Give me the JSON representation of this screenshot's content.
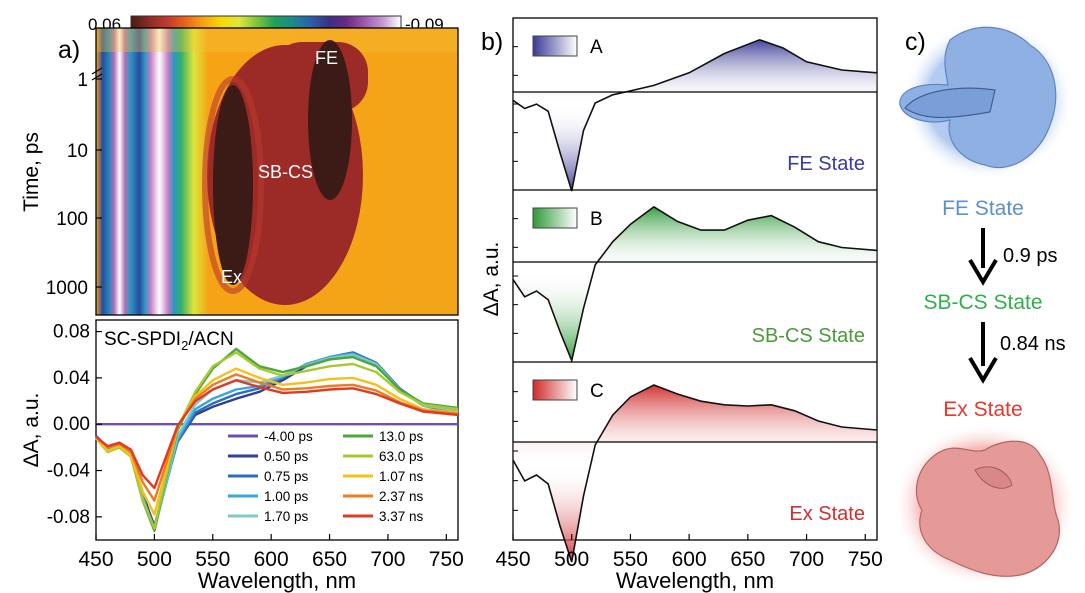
{
  "panel_labels": {
    "a": "a)",
    "b": "b)",
    "c": "c)"
  },
  "colorbar": {
    "max": "0.06",
    "min": "-0.09",
    "colors": [
      "#4a1a12",
      "#8e2a28",
      "#c0392b",
      "#e8641a",
      "#f6a316",
      "#f8d800",
      "#dfe63c",
      "#7cc63a",
      "#1e9f5a",
      "#1b8a8e",
      "#2a5fa8",
      "#3b2f85",
      "#6a2a86",
      "#a05ab0",
      "#c59ad0",
      "#ffffff"
    ]
  },
  "chart_data": [
    {
      "type": "heatmap",
      "panel": "a) top",
      "xlabel": "",
      "ylabel": "Time, ps",
      "yticks": [
        "1",
        "10",
        "100",
        "1000"
      ],
      "annotations": [
        "FE",
        "SB-CS",
        "Ex"
      ],
      "yscale": "log"
    },
    {
      "type": "line",
      "panel": "a) bottom",
      "title": "SC-SPDI2/ACN",
      "xlabel": "Wavelength, nm",
      "ylabel": "ΔA, a.u.",
      "xlim": [
        450,
        760
      ],
      "ylim": [
        -0.1,
        0.09
      ],
      "xticks": [
        "450",
        "500",
        "550",
        "600",
        "650",
        "700",
        "750"
      ],
      "yticks": [
        "0.08",
        "0.04",
        "0.00",
        "-0.04",
        "-0.08"
      ],
      "x": [
        450,
        460,
        470,
        480,
        490,
        500,
        510,
        520,
        535,
        550,
        570,
        590,
        610,
        630,
        650,
        670,
        690,
        710,
        730,
        760
      ],
      "series": [
        {
          "name": "-4.00 ps",
          "color": "#6a4fb8",
          "values": [
            0,
            0,
            0,
            0,
            0,
            0,
            0,
            0,
            0,
            0,
            0,
            0,
            0,
            0,
            0,
            0,
            0,
            0,
            0,
            0
          ]
        },
        {
          "name": "0.50 ps",
          "color": "#2e3f9c",
          "values": [
            -0.01,
            -0.02,
            -0.018,
            -0.024,
            -0.06,
            -0.088,
            -0.05,
            -0.015,
            0.008,
            0.015,
            0.022,
            0.028,
            0.038,
            0.05,
            0.056,
            0.06,
            0.052,
            0.03,
            0.016,
            0.01
          ]
        },
        {
          "name": "0.75 ps",
          "color": "#2a6ebe",
          "values": [
            -0.01,
            -0.021,
            -0.018,
            -0.025,
            -0.062,
            -0.09,
            -0.051,
            -0.015,
            0.01,
            0.018,
            0.026,
            0.031,
            0.04,
            0.052,
            0.058,
            0.062,
            0.053,
            0.031,
            0.017,
            0.011
          ]
        },
        {
          "name": "1.00 ps",
          "color": "#3aa4dc",
          "values": [
            -0.011,
            -0.022,
            -0.019,
            -0.026,
            -0.063,
            -0.091,
            -0.052,
            -0.013,
            0.013,
            0.022,
            0.03,
            0.033,
            0.041,
            0.052,
            0.058,
            0.061,
            0.052,
            0.03,
            0.016,
            0.011
          ]
        },
        {
          "name": "1.70 ps",
          "color": "#7fc9c9",
          "values": [
            -0.012,
            -0.023,
            -0.02,
            -0.027,
            -0.065,
            -0.092,
            -0.05,
            -0.01,
            0.017,
            0.03,
            0.038,
            0.036,
            0.042,
            0.051,
            0.057,
            0.06,
            0.052,
            0.03,
            0.016,
            0.012
          ]
        },
        {
          "name": "13.0 ps",
          "color": "#4aa83a",
          "values": [
            -0.012,
            -0.024,
            -0.02,
            -0.028,
            -0.066,
            -0.092,
            -0.047,
            -0.005,
            0.026,
            0.048,
            0.065,
            0.05,
            0.045,
            0.05,
            0.056,
            0.058,
            0.05,
            0.03,
            0.018,
            0.014
          ]
        },
        {
          "name": "63.0 ps",
          "color": "#a8c832",
          "values": [
            -0.012,
            -0.024,
            -0.02,
            -0.028,
            -0.065,
            -0.09,
            -0.045,
            -0.003,
            0.028,
            0.05,
            0.062,
            0.048,
            0.042,
            0.046,
            0.05,
            0.052,
            0.045,
            0.028,
            0.017,
            0.013
          ]
        },
        {
          "name": "1.07 ns",
          "color": "#f2c21a",
          "values": [
            -0.012,
            -0.023,
            -0.019,
            -0.027,
            -0.058,
            -0.078,
            -0.04,
            -0.002,
            0.024,
            0.038,
            0.048,
            0.04,
            0.034,
            0.036,
            0.039,
            0.04,
            0.034,
            0.022,
            0.013,
            0.01
          ]
        },
        {
          "name": "2.37 ns",
          "color": "#ee7a22",
          "values": [
            -0.011,
            -0.02,
            -0.017,
            -0.024,
            -0.05,
            -0.066,
            -0.034,
            -0.002,
            0.022,
            0.034,
            0.043,
            0.036,
            0.03,
            0.031,
            0.033,
            0.034,
            0.029,
            0.019,
            0.012,
            0.009
          ]
        },
        {
          "name": "3.37 ns",
          "color": "#e23a22",
          "values": [
            -0.011,
            -0.019,
            -0.016,
            -0.022,
            -0.044,
            -0.055,
            -0.028,
            -0.001,
            0.02,
            0.03,
            0.038,
            0.032,
            0.027,
            0.028,
            0.03,
            0.031,
            0.026,
            0.018,
            0.011,
            0.008
          ]
        }
      ]
    },
    {
      "type": "area",
      "panel": "b)",
      "xlabel": "Wavelength, nm",
      "ylabel": "ΔA, a.u.",
      "xlim": [
        450,
        760
      ],
      "xticks": [
        "450",
        "500",
        "550",
        "600",
        "650",
        "700",
        "750"
      ],
      "components": [
        {
          "legend": "A",
          "label": "FE State",
          "color": "#3a3a96",
          "label_color": "#3a3aa0",
          "x": [
            450,
            460,
            470,
            480,
            490,
            500,
            510,
            520,
            535,
            550,
            570,
            600,
            630,
            660,
            680,
            700,
            730,
            760
          ],
          "values": [
            -0.15,
            -0.3,
            -0.22,
            -0.35,
            -1.1,
            -1.8,
            -0.7,
            -0.2,
            -0.05,
            0.02,
            0.12,
            0.35,
            0.7,
            0.95,
            0.8,
            0.55,
            0.4,
            0.35
          ]
        },
        {
          "legend": "B",
          "label": "SB-CS State",
          "color": "#2f9a3a",
          "label_color": "#4a9a3a",
          "x": [
            450,
            460,
            470,
            480,
            490,
            500,
            510,
            520,
            535,
            550,
            570,
            590,
            610,
            630,
            650,
            670,
            690,
            710,
            730,
            760
          ],
          "values": [
            -0.3,
            -0.6,
            -0.5,
            -0.65,
            -1.2,
            -1.7,
            -0.8,
            -0.05,
            0.35,
            0.65,
            0.95,
            0.7,
            0.55,
            0.55,
            0.72,
            0.8,
            0.6,
            0.35,
            0.25,
            0.2
          ]
        },
        {
          "legend": "C",
          "label": "Ex State",
          "color": "#d02a2a",
          "label_color": "#d03030",
          "x": [
            450,
            460,
            470,
            480,
            490,
            500,
            510,
            520,
            535,
            550,
            570,
            590,
            610,
            630,
            650,
            670,
            690,
            710,
            730,
            760
          ],
          "values": [
            -0.3,
            -0.65,
            -0.55,
            -0.7,
            -1.4,
            -2.0,
            -0.9,
            -0.05,
            0.45,
            0.75,
            0.95,
            0.8,
            0.68,
            0.62,
            0.6,
            0.62,
            0.52,
            0.35,
            0.25,
            0.2
          ]
        }
      ]
    }
  ],
  "scheme": {
    "states": [
      {
        "label": "FE State",
        "color": "#5b8fd4"
      },
      {
        "label": "SB-CS State",
        "color": "#2fb04a"
      },
      {
        "label": "Ex State",
        "color": "#e8362e"
      }
    ],
    "arrows": [
      {
        "label": "0.9 ps"
      },
      {
        "label": "0.84 ns"
      }
    ]
  }
}
